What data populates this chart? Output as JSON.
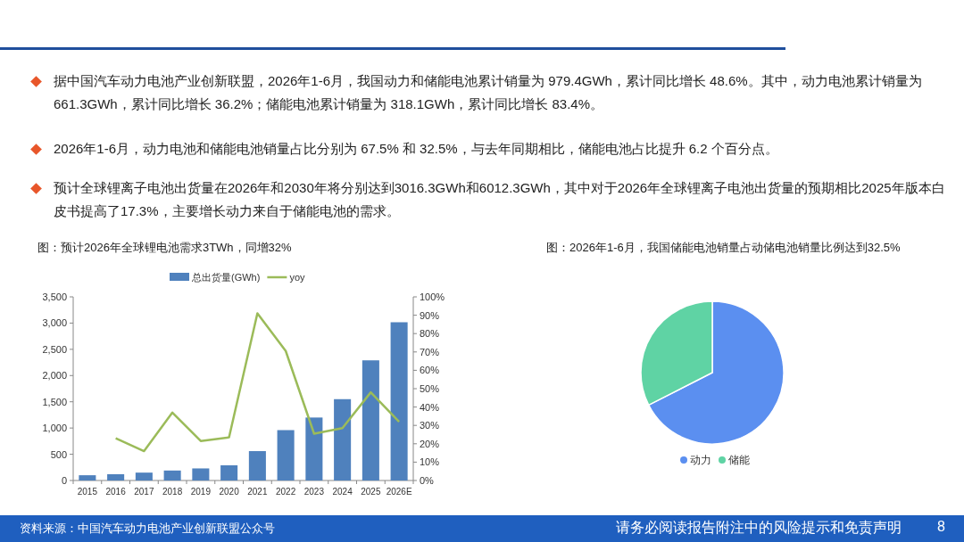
{
  "chart_data": [
    {
      "type": "other",
      "annotations": [
        "据中国汽车动力电池产业创新联盟，2026年1-6月，我国动力和储能电池累计销量为 979.4GWh，累计同比增长 48.6%。其中，动力电池累计销量为 661.3GWh，累计同比增长 36.2%；储能电池累计销量为 318.1GWh，累计同比增长 83.4%。",
        "2026年1-6月，动力电池和储能电池销量占比分别为 67.5% 和 32.5%，与去年同期相比，储能电池占比提升 6.2 个百分点。",
        "预计全球锂离子电池出货量在2026年和2030年将分别达到3016.3GWh和6012.3GWh，其中对于2026年全球锂离子电池出货量的预期相比2025年版本白皮书提高了17.3%，主要增长动力来自于储能电池的需求。",
        "资料来源：中国汽车动力电池产业创新联盟公众号",
        "请务必阅读报告附注中的风险提示和免责声明",
        "8"
      ]
    },
    {
      "type": "bar",
      "title": "图：预计2026年全球锂电池需求3TWh，同增32%",
      "categories": [
        "2015",
        "2016",
        "2017",
        "2018",
        "2019",
        "2020",
        "2021",
        "2022",
        "2023",
        "2024",
        "2025",
        "2026E"
      ],
      "series": [
        {
          "name": "总出货量(GWh)",
          "type": "bar",
          "color": "#4f81bd",
          "values": [
            100,
            120,
            150,
            190,
            230,
            290,
            560,
            960,
            1200,
            1550,
            2290,
            3016
          ]
        },
        {
          "name": "yoy",
          "type": "line",
          "axis": "y2",
          "color": "#9bbb59",
          "values": [
            null,
            23,
            16,
            37,
            21.5,
            23.5,
            91,
            70.5,
            25.5,
            28.5,
            48,
            32
          ]
        }
      ],
      "ylim": [
        0,
        3500
      ],
      "yticks": [
        0,
        500,
        {
          "value": 1000,
          "label": "1,000"
        },
        {
          "value": 1500,
          "label": "1,500"
        },
        {
          "value": 2000,
          "label": "2,000"
        },
        {
          "value": 2500,
          "label": "2,500"
        },
        {
          "value": 3000,
          "label": "3,000"
        },
        {
          "value": 3500,
          "label": "3,500"
        }
      ],
      "y2lim": [
        0,
        100
      ],
      "y2ticks": [
        {
          "value": 0,
          "label": "0%"
        },
        {
          "value": 10,
          "label": "10%"
        },
        {
          "value": 20,
          "label": "20%"
        },
        {
          "value": 30,
          "label": "30%"
        },
        {
          "value": 40,
          "label": "40%"
        },
        {
          "value": 50,
          "label": "50%"
        },
        {
          "value": 60,
          "label": "60%"
        },
        {
          "value": 70,
          "label": "70%"
        },
        {
          "value": 80,
          "label": "80%"
        },
        {
          "value": 90,
          "label": "90%"
        },
        {
          "value": 100,
          "label": "100%"
        }
      ],
      "legend": "top",
      "grid": false
    },
    {
      "type": "pie",
      "title": "图：2026年1-6月，我国储能电池销量占动储电池销量比例达到32.5%",
      "categories": [
        "动力",
        "储能"
      ],
      "values": [
        67.5,
        32.5
      ],
      "colors": [
        "#5b8ff0",
        "#5fd3a4"
      ],
      "legend": "bottom"
    }
  ]
}
